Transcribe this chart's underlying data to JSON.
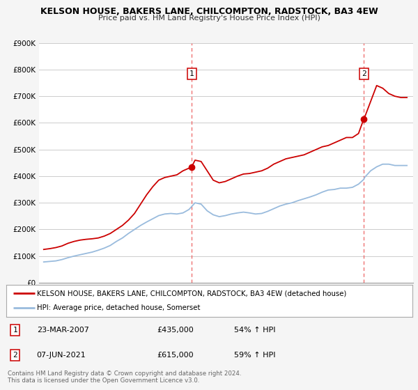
{
  "title": "KELSON HOUSE, BAKERS LANE, CHILCOMPTON, RADSTOCK, BA3 4EW",
  "subtitle": "Price paid vs. HM Land Registry's House Price Index (HPI)",
  "ylim": [
    0,
    900000
  ],
  "yticks": [
    0,
    100000,
    200000,
    300000,
    400000,
    500000,
    600000,
    700000,
    800000,
    900000
  ],
  "ytick_labels": [
    "£0",
    "£100K",
    "£200K",
    "£300K",
    "£400K",
    "£500K",
    "£600K",
    "£700K",
    "£800K",
    "£900K"
  ],
  "xlim_start": 1994.6,
  "xlim_end": 2025.5,
  "bg_color": "#f5f5f5",
  "plot_bg_color": "#ffffff",
  "grid_color": "#cccccc",
  "red_line_color": "#cc0000",
  "blue_line_color": "#99bbdd",
  "vline_color": "#ee6666",
  "marker_color": "#cc0000",
  "sale1_x": 2007.22,
  "sale1_y": 435000,
  "sale1_label": "1",
  "sale2_x": 2021.44,
  "sale2_y": 615000,
  "sale2_label": "2",
  "legend_line1": "KELSON HOUSE, BAKERS LANE, CHILCOMPTON, RADSTOCK, BA3 4EW (detached house)",
  "legend_line2": "HPI: Average price, detached house, Somerset",
  "table_row1": [
    "1",
    "23-MAR-2007",
    "£435,000",
    "54% ↑ HPI"
  ],
  "table_row2": [
    "2",
    "07-JUN-2021",
    "£615,000",
    "59% ↑ HPI"
  ],
  "footer_line1": "Contains HM Land Registry data © Crown copyright and database right 2024.",
  "footer_line2": "This data is licensed under the Open Government Licence v3.0.",
  "red_x": [
    1995.0,
    1995.5,
    1996.0,
    1996.5,
    1997.0,
    1997.5,
    1998.0,
    1998.5,
    1999.0,
    1999.5,
    2000.0,
    2000.5,
    2001.0,
    2001.5,
    2002.0,
    2002.5,
    2003.0,
    2003.5,
    2004.0,
    2004.5,
    2005.0,
    2005.5,
    2006.0,
    2006.5,
    2007.0,
    2007.22,
    2007.5,
    2008.0,
    2008.5,
    2009.0,
    2009.5,
    2010.0,
    2010.5,
    2011.0,
    2011.5,
    2012.0,
    2012.5,
    2013.0,
    2013.5,
    2014.0,
    2014.5,
    2015.0,
    2015.5,
    2016.0,
    2016.5,
    2017.0,
    2017.5,
    2018.0,
    2018.5,
    2019.0,
    2019.5,
    2020.0,
    2020.5,
    2021.0,
    2021.44,
    2021.5,
    2022.0,
    2022.5,
    2023.0,
    2023.5,
    2024.0,
    2024.5,
    2025.0
  ],
  "red_y": [
    125000,
    128000,
    132000,
    138000,
    148000,
    155000,
    160000,
    163000,
    165000,
    168000,
    175000,
    185000,
    200000,
    215000,
    235000,
    260000,
    295000,
    330000,
    360000,
    385000,
    395000,
    400000,
    405000,
    420000,
    430000,
    435000,
    460000,
    455000,
    420000,
    385000,
    375000,
    380000,
    390000,
    400000,
    408000,
    410000,
    415000,
    420000,
    430000,
    445000,
    455000,
    465000,
    470000,
    475000,
    480000,
    490000,
    500000,
    510000,
    515000,
    525000,
    535000,
    545000,
    545000,
    560000,
    615000,
    620000,
    680000,
    740000,
    730000,
    710000,
    700000,
    695000,
    695000
  ],
  "blue_x": [
    1995.0,
    1995.5,
    1996.0,
    1996.5,
    1997.0,
    1997.5,
    1998.0,
    1998.5,
    1999.0,
    1999.5,
    2000.0,
    2000.5,
    2001.0,
    2001.5,
    2002.0,
    2002.5,
    2003.0,
    2003.5,
    2004.0,
    2004.5,
    2005.0,
    2005.5,
    2006.0,
    2006.5,
    2007.0,
    2007.5,
    2008.0,
    2008.5,
    2009.0,
    2009.5,
    2010.0,
    2010.5,
    2011.0,
    2011.5,
    2012.0,
    2012.5,
    2013.0,
    2013.5,
    2014.0,
    2014.5,
    2015.0,
    2015.5,
    2016.0,
    2016.5,
    2017.0,
    2017.5,
    2018.0,
    2018.5,
    2019.0,
    2019.5,
    2020.0,
    2020.5,
    2021.0,
    2021.44,
    2021.5,
    2022.0,
    2022.5,
    2023.0,
    2023.5,
    2024.0,
    2024.5,
    2025.0
  ],
  "blue_y": [
    78000,
    80000,
    82000,
    87000,
    94000,
    100000,
    105000,
    110000,
    115000,
    122000,
    130000,
    140000,
    155000,
    168000,
    185000,
    200000,
    215000,
    228000,
    240000,
    252000,
    258000,
    260000,
    258000,
    262000,
    275000,
    300000,
    295000,
    270000,
    255000,
    248000,
    252000,
    258000,
    262000,
    265000,
    262000,
    258000,
    260000,
    268000,
    278000,
    288000,
    295000,
    300000,
    308000,
    315000,
    322000,
    330000,
    340000,
    348000,
    350000,
    355000,
    355000,
    358000,
    370000,
    388000,
    395000,
    420000,
    435000,
    445000,
    445000,
    440000,
    440000,
    440000
  ]
}
